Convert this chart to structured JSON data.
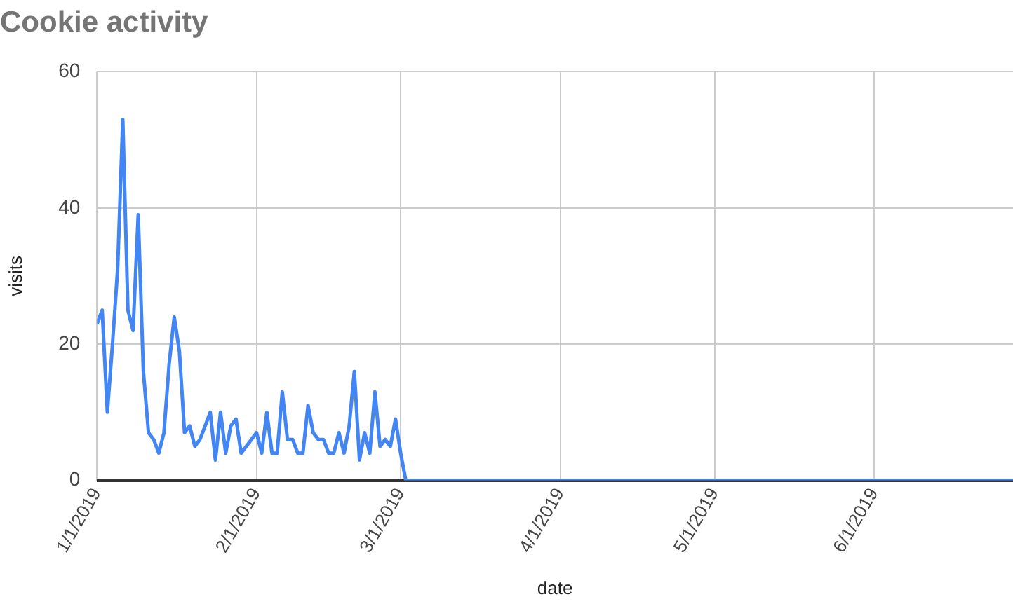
{
  "chart_data": {
    "type": "line",
    "title": "Cookie activity",
    "xlabel": "date",
    "ylabel": "visits",
    "x": [
      "2019-01-01",
      "2019-01-02",
      "2019-01-03",
      "2019-01-04",
      "2019-01-05",
      "2019-01-06",
      "2019-01-07",
      "2019-01-08",
      "2019-01-09",
      "2019-01-10",
      "2019-01-11",
      "2019-01-12",
      "2019-01-13",
      "2019-01-14",
      "2019-01-15",
      "2019-01-16",
      "2019-01-17",
      "2019-01-18",
      "2019-01-19",
      "2019-01-20",
      "2019-01-21",
      "2019-01-22",
      "2019-01-23",
      "2019-01-24",
      "2019-01-25",
      "2019-01-26",
      "2019-01-27",
      "2019-01-28",
      "2019-01-29",
      "2019-01-30",
      "2019-01-31",
      "2019-02-01",
      "2019-02-02",
      "2019-02-03",
      "2019-02-04",
      "2019-02-05",
      "2019-02-06",
      "2019-02-07",
      "2019-02-08",
      "2019-02-09",
      "2019-02-10",
      "2019-02-11",
      "2019-02-12",
      "2019-02-13",
      "2019-02-14",
      "2019-02-15",
      "2019-02-16",
      "2019-02-17",
      "2019-02-18",
      "2019-02-19",
      "2019-02-20",
      "2019-02-21",
      "2019-02-22",
      "2019-02-23",
      "2019-02-24",
      "2019-02-25",
      "2019-02-26",
      "2019-02-27",
      "2019-02-28",
      "2019-03-01",
      "2019-03-02",
      "2019-06-28"
    ],
    "series": [
      {
        "color": "#4285f4",
        "values": [
          23,
          25,
          10,
          20,
          31,
          53,
          25,
          22,
          39,
          16,
          7,
          6,
          4,
          7,
          17,
          24,
          19,
          7,
          8,
          5,
          6,
          8,
          10,
          3,
          10,
          4,
          8,
          9,
          4,
          5,
          6,
          7,
          4,
          10,
          4,
          4,
          13,
          6,
          6,
          4,
          4,
          11,
          7,
          6,
          6,
          4,
          4,
          7,
          4,
          8,
          16,
          3,
          7,
          4,
          13,
          5,
          6,
          5,
          9,
          4,
          0,
          0
        ]
      }
    ],
    "xlim": [
      "2019-01-01",
      "2019-06-28"
    ],
    "xticks": [
      {
        "value": "2019-01-01",
        "label": "1/1/2019"
      },
      {
        "value": "2019-02-01",
        "label": "2/1/2019"
      },
      {
        "value": "2019-03-01",
        "label": "3/1/2019"
      },
      {
        "value": "2019-04-01",
        "label": "4/1/2019"
      },
      {
        "value": "2019-05-01",
        "label": "5/1/2019"
      },
      {
        "value": "2019-06-01",
        "label": "6/1/2019"
      }
    ],
    "ylim": [
      0,
      60
    ],
    "yticks": [
      0,
      20,
      40,
      60
    ],
    "grid": true,
    "legend": false,
    "marker": "none",
    "line_style": "solid"
  }
}
